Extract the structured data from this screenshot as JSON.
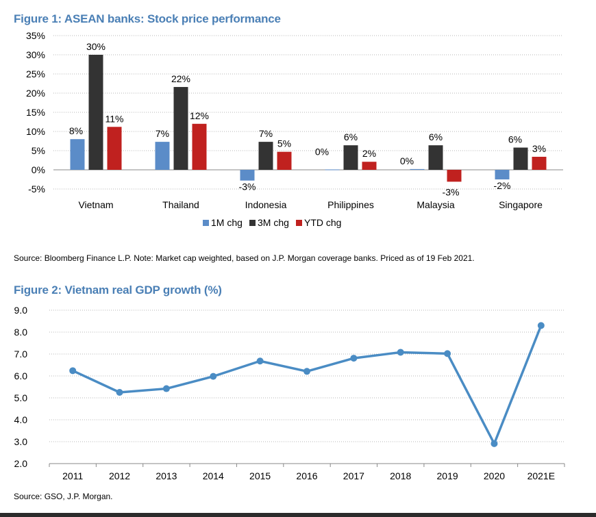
{
  "figure1": {
    "title": "Figure 1: ASEAN banks: Stock price performance",
    "source": "Source: Bloomberg Finance L.P. Note: Market cap weighted, based on J.P. Morgan coverage banks. Priced as of 19 Feb 2021."
  },
  "figure2": {
    "title": "Figure 2: Vietnam real GDP growth (%)",
    "source": "Source: GSO, J.P. Morgan."
  },
  "chart_data": [
    {
      "type": "bar",
      "title": "ASEAN banks: Stock price performance",
      "categories": [
        "Vietnam",
        "Thailand",
        "Indonesia",
        "Philippines",
        "Malaysia",
        "Singapore"
      ],
      "series": [
        {
          "name": "1M chg",
          "color": "#5b8cc8",
          "values": [
            8,
            7.3,
            -2.8,
            0.1,
            0.2,
            -2.5
          ],
          "labels": [
            "8%",
            "7%",
            "-3%",
            "0%",
            "0%",
            "-2%"
          ]
        },
        {
          "name": "3M chg",
          "color": "#333333",
          "values": [
            30,
            21.6,
            7.3,
            6.4,
            6.4,
            5.8
          ],
          "labels": [
            "30%",
            "22%",
            "7%",
            "6%",
            "6%",
            "6%"
          ]
        },
        {
          "name": "YTD chg",
          "color": "#c0211f",
          "values": [
            11.2,
            12,
            4.7,
            2.1,
            -3.1,
            3.4
          ],
          "labels": [
            "11%",
            "12%",
            "5%",
            "2%",
            "-3%",
            "3%"
          ]
        }
      ],
      "yticks": [
        "35%",
        "30%",
        "25%",
        "20%",
        "15%",
        "10%",
        "5%",
        "0%",
        "-5%"
      ],
      "ylim": [
        -5,
        35
      ],
      "grid": true,
      "legend": "bottom"
    },
    {
      "type": "line",
      "title": "Vietnam real GDP growth (%)",
      "x": [
        "2011",
        "2012",
        "2013",
        "2014",
        "2015",
        "2016",
        "2017",
        "2018",
        "2019",
        "2020",
        "2021E"
      ],
      "series": [
        {
          "name": "Vietnam real GDP growth",
          "color": "#4a8cc4",
          "values": [
            6.24,
            5.25,
            5.42,
            5.98,
            6.68,
            6.21,
            6.81,
            7.08,
            7.02,
            2.91,
            8.3
          ]
        }
      ],
      "yticks": [
        "9.0",
        "8.0",
        "7.0",
        "6.0",
        "5.0",
        "4.0",
        "3.0",
        "2.0"
      ],
      "ylim": [
        2,
        9
      ],
      "grid": true
    }
  ]
}
